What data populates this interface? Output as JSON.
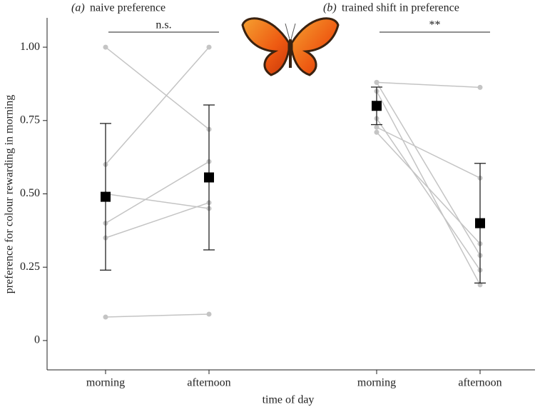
{
  "chart_data": {
    "type": "paired",
    "ylabel": "preference for colour rewarding in morning",
    "xlabel": "time of day",
    "ylim": [
      -0.1,
      1.1
    ],
    "yticks": [
      0,
      {
        "value": 0.25,
        "label": "0.25"
      },
      {
        "value": 0.5,
        "label": "0.50"
      },
      {
        "value": 0.75,
        "label": "0.75"
      },
      {
        "value": 1,
        "label": "1.00"
      }
    ],
    "pair_color": "#c4c4c4",
    "mean_color": "#000000",
    "panels": [
      {
        "label": "(a)",
        "title": "naive preference",
        "significance": "n.s.",
        "categories": [
          "morning",
          "afternoon"
        ],
        "pairs": [
          [
            1.0,
            0.72
          ],
          [
            0.6,
            1.0
          ],
          [
            0.4,
            0.61
          ],
          [
            0.35,
            0.47
          ],
          [
            0.5,
            0.45
          ],
          [
            0.08,
            0.09
          ]
        ],
        "means": [
          0.49,
          0.556
        ],
        "errors": [
          0.25,
          0.247
        ]
      },
      {
        "label": "(b)",
        "title": "trained shift in preference",
        "significance": "**",
        "categories": [
          "morning",
          "afternoon"
        ],
        "pairs": [
          [
            0.88,
            0.863
          ],
          [
            0.88,
            0.29
          ],
          [
            0.85,
            0.19
          ],
          [
            0.757,
            0.24
          ],
          [
            0.727,
            0.554
          ],
          [
            0.71,
            0.33
          ]
        ],
        "means": [
          0.8,
          0.4
        ],
        "errors": [
          0.064,
          0.204
        ]
      }
    ]
  }
}
